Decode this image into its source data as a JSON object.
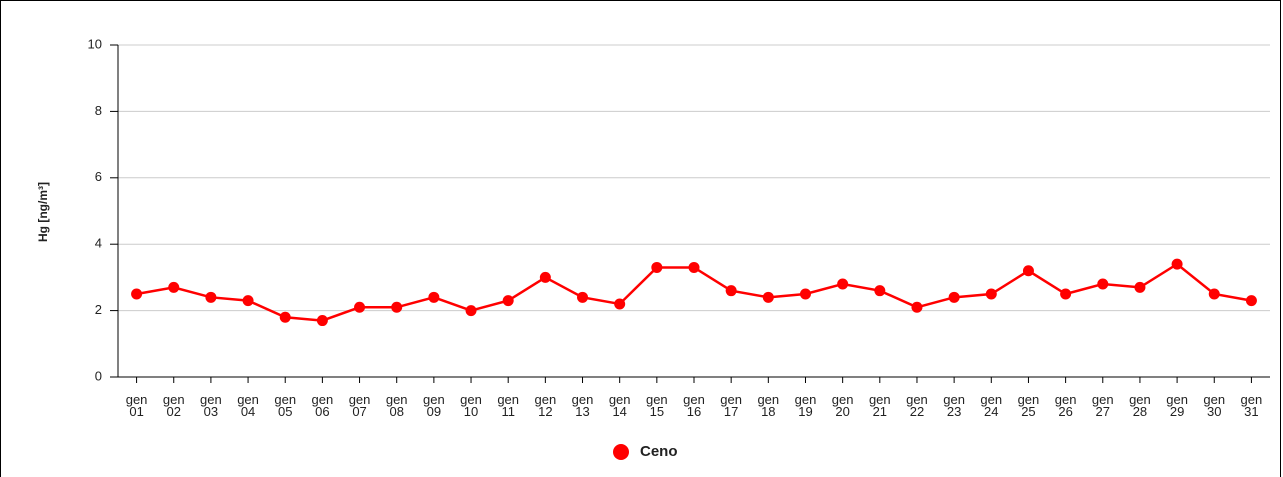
{
  "chart_data": {
    "type": "line",
    "y_label": "Hg [ng/m³]",
    "categories": [
      "gen 01",
      "gen 02",
      "gen 03",
      "gen 04",
      "gen 05",
      "gen 06",
      "gen 07",
      "gen 08",
      "gen 09",
      "gen 10",
      "gen 11",
      "gen 12",
      "gen 13",
      "gen 14",
      "gen 15",
      "gen 16",
      "gen 17",
      "gen 18",
      "gen 19",
      "gen 20",
      "gen 21",
      "gen 22",
      "gen 23",
      "gen 24",
      "gen 25",
      "gen 26",
      "gen 27",
      "gen 28",
      "gen 29",
      "gen 30",
      "gen 31"
    ],
    "series": [
      {
        "name": "Ceno",
        "color": "#ff0000",
        "values": [
          2.5,
          2.7,
          2.4,
          2.3,
          1.8,
          1.7,
          2.1,
          2.1,
          2.4,
          2.0,
          2.3,
          3.0,
          2.4,
          2.2,
          3.3,
          3.3,
          2.6,
          2.4,
          2.5,
          2.8,
          2.6,
          2.1,
          2.4,
          2.5,
          3.2,
          2.5,
          2.8,
          2.7,
          3.4,
          2.5,
          2.3
        ]
      }
    ],
    "ylim": [
      0,
      10
    ],
    "yticks": [
      0,
      2,
      4,
      6,
      8,
      10
    ],
    "grid": true,
    "legend": "bottom"
  }
}
